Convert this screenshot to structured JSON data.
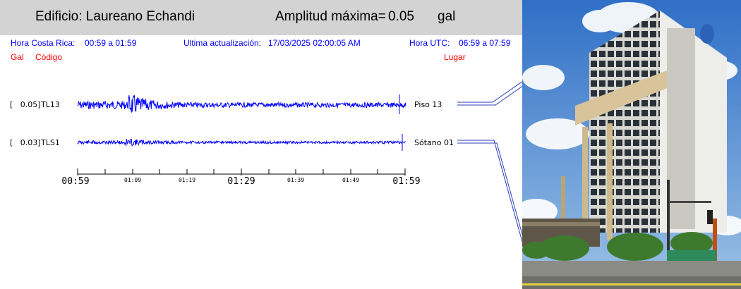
{
  "header": {
    "building": "Edificio: Laureano Echandi",
    "amplitude_label": "Amplitud máxima=",
    "amplitude_value": "0.05",
    "amplitude_unit": "gal"
  },
  "info": {
    "local_time_label": "Hora Costa Rica:",
    "local_time_range": "00:59 a 01:59",
    "update_label": "Ultima actualización:",
    "update_value": "17/03/2025 02:00:05 AM",
    "utc_label": "Hora UTC:",
    "utc_range": "06:59 a 07:59"
  },
  "columns": {
    "gal": "Gal",
    "code": "Código",
    "place": "Lugar"
  },
  "channels": [
    {
      "amp": "[   0.05]",
      "code": "TL13",
      "place": "Piso 13",
      "peak_gal": 0.05
    },
    {
      "amp": "[   0.03]",
      "code": "TLS1",
      "place": "Sótano 01",
      "peak_gal": 0.03
    }
  ],
  "time_axis": {
    "major": [
      "00:59",
      "01:29",
      "01:59"
    ],
    "minor": [
      "01:09",
      "01:19",
      "01:39",
      "01:49"
    ]
  },
  "colors": {
    "trace": "#0000ff",
    "header_bg": "#d3d3d3",
    "info_text": "#0000ff",
    "column_text": "#ff0000"
  },
  "photo": {
    "subject": "building-photo"
  }
}
